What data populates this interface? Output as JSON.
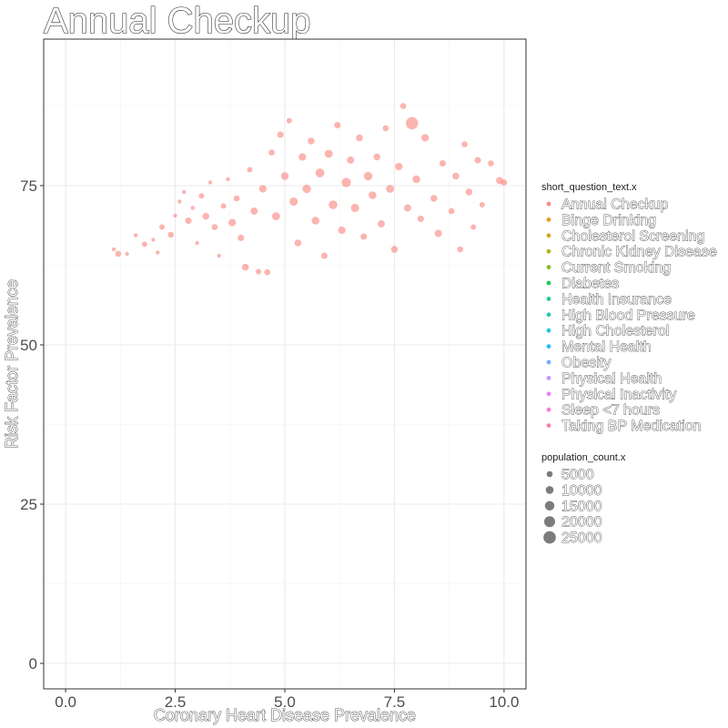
{
  "chart_data": {
    "type": "scatter",
    "title": "Annual Checkup",
    "xlabel": "Coronary Heart Disease Prevalence",
    "ylabel": "Risk Factor Prevalence",
    "xlim": [
      -0.5,
      10.5
    ],
    "ylim": [
      -4,
      98
    ],
    "x_ticks": [
      0.0,
      2.5,
      5.0,
      7.5,
      10.0
    ],
    "x_tick_labels": [
      "0.0",
      "2.5",
      "5.0",
      "7.5",
      "10.0"
    ],
    "y_ticks": [
      0,
      25,
      50,
      75
    ],
    "y_tick_labels": [
      "0",
      "25",
      "50",
      "75"
    ],
    "grid": true,
    "legend_placement": "right",
    "color_legend": {
      "title": "short_question_text.x",
      "entries": [
        {
          "label": "Annual Checkup",
          "color": "#F8766D"
        },
        {
          "label": "Binge Drinking",
          "color": "#E58700"
        },
        {
          "label": "Cholesterol Screening",
          "color": "#C99800"
        },
        {
          "label": "Chronic Kidney Disease",
          "color": "#A3A500"
        },
        {
          "label": "Current Smoking",
          "color": "#6BB100"
        },
        {
          "label": "Diabetes",
          "color": "#00BA38"
        },
        {
          "label": "Health Insurance",
          "color": "#00BF7D"
        },
        {
          "label": "High Blood Pressure",
          "color": "#00C0AF"
        },
        {
          "label": "High Cholesterol",
          "color": "#00BCD8"
        },
        {
          "label": "Mental Health",
          "color": "#00B0F6"
        },
        {
          "label": "Obesity",
          "color": "#619CFF"
        },
        {
          "label": "Physical Health",
          "color": "#B983FF"
        },
        {
          "label": "Physical Inactivity",
          "color": "#E76BF3"
        },
        {
          "label": "Sleep <7 hours",
          "color": "#FD61D1"
        },
        {
          "label": "Taking BP Medication",
          "color": "#FF67A4"
        }
      ]
    },
    "size_legend": {
      "title": "population_count.x",
      "entries": [
        5000,
        10000,
        15000,
        20000,
        25000
      ]
    },
    "series": [
      {
        "name": "Annual Checkup",
        "color": "#F8766D",
        "points": [
          {
            "x": 1.1,
            "y": 65.0,
            "size": 3000
          },
          {
            "x": 1.2,
            "y": 64.3,
            "size": 4000
          },
          {
            "x": 1.4,
            "y": 64.3,
            "size": 3000
          },
          {
            "x": 1.6,
            "y": 67.2,
            "size": 3000
          },
          {
            "x": 1.8,
            "y": 65.8,
            "size": 3500
          },
          {
            "x": 2.0,
            "y": 66.5,
            "size": 3000
          },
          {
            "x": 2.1,
            "y": 64.5,
            "size": 3000
          },
          {
            "x": 2.2,
            "y": 68.5,
            "size": 3500
          },
          {
            "x": 2.4,
            "y": 67.3,
            "size": 4000
          },
          {
            "x": 2.5,
            "y": 70.3,
            "size": 3000
          },
          {
            "x": 2.6,
            "y": 72.5,
            "size": 3000
          },
          {
            "x": 2.7,
            "y": 74.0,
            "size": 3000
          },
          {
            "x": 2.8,
            "y": 69.5,
            "size": 4500
          },
          {
            "x": 2.9,
            "y": 71.5,
            "size": 3000
          },
          {
            "x": 3.0,
            "y": 66.0,
            "size": 3000
          },
          {
            "x": 3.1,
            "y": 73.4,
            "size": 3500
          },
          {
            "x": 3.2,
            "y": 70.2,
            "size": 5000
          },
          {
            "x": 3.3,
            "y": 75.5,
            "size": 3000
          },
          {
            "x": 3.4,
            "y": 68.5,
            "size": 4000
          },
          {
            "x": 3.5,
            "y": 64.0,
            "size": 3000
          },
          {
            "x": 3.6,
            "y": 71.8,
            "size": 3500
          },
          {
            "x": 3.7,
            "y": 76.0,
            "size": 3000
          },
          {
            "x": 3.8,
            "y": 69.2,
            "size": 6000
          },
          {
            "x": 3.9,
            "y": 73.0,
            "size": 4000
          },
          {
            "x": 4.0,
            "y": 66.8,
            "size": 4500
          },
          {
            "x": 4.1,
            "y": 62.2,
            "size": 5000
          },
          {
            "x": 4.2,
            "y": 77.5,
            "size": 3500
          },
          {
            "x": 4.3,
            "y": 71.0,
            "size": 5500
          },
          {
            "x": 4.4,
            "y": 61.5,
            "size": 3500
          },
          {
            "x": 4.5,
            "y": 74.5,
            "size": 6000
          },
          {
            "x": 4.6,
            "y": 61.4,
            "size": 4000
          },
          {
            "x": 4.7,
            "y": 80.2,
            "size": 4000
          },
          {
            "x": 4.8,
            "y": 70.2,
            "size": 7000
          },
          {
            "x": 4.9,
            "y": 83.0,
            "size": 4500
          },
          {
            "x": 5.0,
            "y": 76.5,
            "size": 6500
          },
          {
            "x": 5.1,
            "y": 85.2,
            "size": 3500
          },
          {
            "x": 5.2,
            "y": 72.5,
            "size": 7500
          },
          {
            "x": 5.3,
            "y": 66.0,
            "size": 5000
          },
          {
            "x": 5.4,
            "y": 79.5,
            "size": 6000
          },
          {
            "x": 5.5,
            "y": 74.5,
            "size": 8000
          },
          {
            "x": 5.6,
            "y": 82.0,
            "size": 5000
          },
          {
            "x": 5.7,
            "y": 69.5,
            "size": 6500
          },
          {
            "x": 5.8,
            "y": 77.0,
            "size": 9000
          },
          {
            "x": 5.9,
            "y": 64.0,
            "size": 4500
          },
          {
            "x": 6.0,
            "y": 80.0,
            "size": 7000
          },
          {
            "x": 6.1,
            "y": 72.0,
            "size": 8500
          },
          {
            "x": 6.2,
            "y": 84.5,
            "size": 4500
          },
          {
            "x": 6.3,
            "y": 68.0,
            "size": 6000
          },
          {
            "x": 6.4,
            "y": 75.5,
            "size": 10000
          },
          {
            "x": 6.5,
            "y": 79.0,
            "size": 5500
          },
          {
            "x": 6.6,
            "y": 71.5,
            "size": 7500
          },
          {
            "x": 6.7,
            "y": 82.5,
            "size": 5000
          },
          {
            "x": 6.8,
            "y": 67.0,
            "size": 4500
          },
          {
            "x": 6.9,
            "y": 76.5,
            "size": 8000
          },
          {
            "x": 7.0,
            "y": 73.5,
            "size": 6500
          },
          {
            "x": 7.1,
            "y": 79.5,
            "size": 5000
          },
          {
            "x": 7.2,
            "y": 69.0,
            "size": 5500
          },
          {
            "x": 7.3,
            "y": 84.0,
            "size": 4000
          },
          {
            "x": 7.4,
            "y": 74.5,
            "size": 7000
          },
          {
            "x": 7.5,
            "y": 65.0,
            "size": 5000
          },
          {
            "x": 7.6,
            "y": 78.0,
            "size": 6000
          },
          {
            "x": 7.7,
            "y": 87.5,
            "size": 4000
          },
          {
            "x": 7.8,
            "y": 71.5,
            "size": 5500
          },
          {
            "x": 7.9,
            "y": 84.8,
            "size": 20000
          },
          {
            "x": 8.0,
            "y": 76.0,
            "size": 6500
          },
          {
            "x": 8.1,
            "y": 69.8,
            "size": 4500
          },
          {
            "x": 8.2,
            "y": 82.5,
            "size": 6000
          },
          {
            "x": 8.4,
            "y": 73.0,
            "size": 5000
          },
          {
            "x": 8.5,
            "y": 67.5,
            "size": 5500
          },
          {
            "x": 8.6,
            "y": 78.5,
            "size": 4500
          },
          {
            "x": 8.8,
            "y": 71.0,
            "size": 4000
          },
          {
            "x": 8.9,
            "y": 76.5,
            "size": 5000
          },
          {
            "x": 9.0,
            "y": 65.0,
            "size": 4000
          },
          {
            "x": 9.1,
            "y": 81.5,
            "size": 4000
          },
          {
            "x": 9.2,
            "y": 74.0,
            "size": 5000
          },
          {
            "x": 9.3,
            "y": 68.5,
            "size": 3500
          },
          {
            "x": 9.4,
            "y": 79.0,
            "size": 4500
          },
          {
            "x": 9.5,
            "y": 72.0,
            "size": 3500
          },
          {
            "x": 9.7,
            "y": 78.5,
            "size": 4000
          },
          {
            "x": 9.9,
            "y": 75.8,
            "size": 5500
          },
          {
            "x": 10.0,
            "y": 75.5,
            "size": 4000
          }
        ]
      }
    ]
  }
}
